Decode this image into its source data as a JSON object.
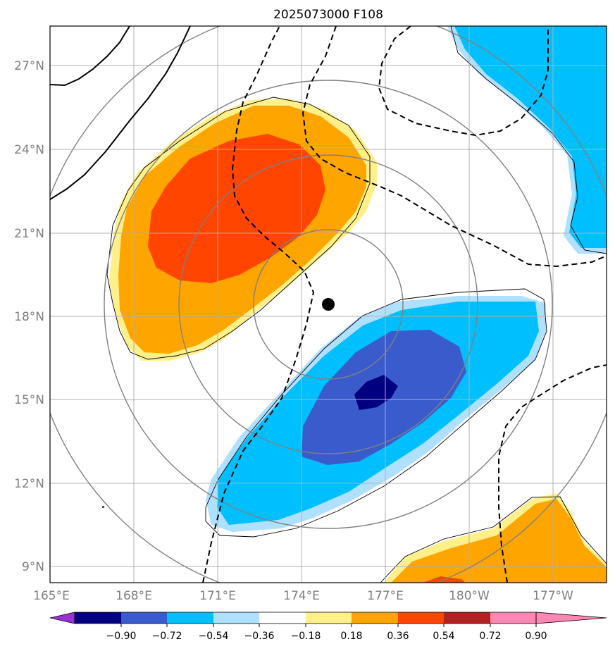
{
  "title": "2025073000 F108",
  "map": {
    "lat_labels": [
      "27°N",
      "24°N",
      "21°N",
      "18°N",
      "15°N",
      "12°N",
      "9°N"
    ],
    "lon_labels": [
      "165°E",
      "168°E",
      "171°E",
      "174°E",
      "177°E",
      "180°W",
      "177°W"
    ],
    "storm_center": {
      "lon": 175.0,
      "lat": 18.5
    },
    "range_ring_count": 4,
    "colors": {
      "gridline": "#b0b0b0",
      "range_ring": "#808080",
      "storm_marker": "#000000",
      "contour": "#000000"
    }
  },
  "colorbar": {
    "tick_labels": [
      "−0.90",
      "−0.72",
      "−0.54",
      "−0.36",
      "−0.18",
      "0.18",
      "0.36",
      "0.54",
      "0.72",
      "0.90"
    ],
    "bins": [
      "#9b30d9",
      "#000080",
      "#3a5bcc",
      "#00bfff",
      "#b0e0ff",
      "#ffffff",
      "#fff08a",
      "#ffa500",
      "#ff4500",
      "#b22222",
      "#ff87b4"
    ]
  }
}
